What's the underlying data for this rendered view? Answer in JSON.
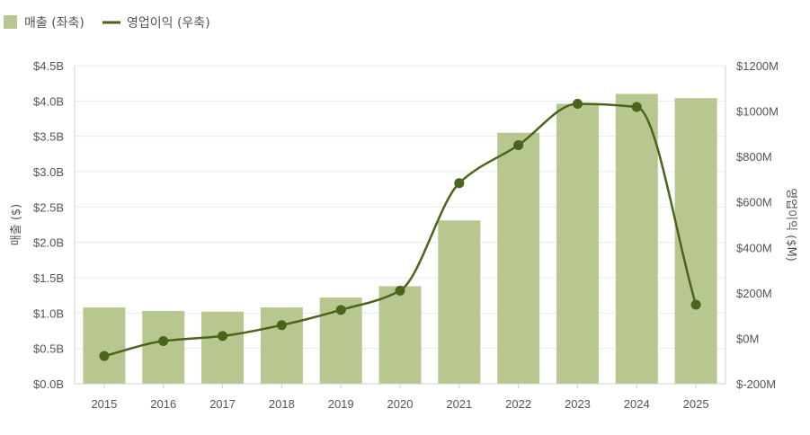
{
  "chart_data": {
    "type": "bar",
    "legend": {
      "position": "top-left"
    },
    "colors": {
      "bar": "#b8c78f",
      "line": "#4b641c",
      "grid": "#ececec",
      "axis": "#d0d0d0",
      "text": "#555555"
    },
    "categories": [
      "2015",
      "2016",
      "2017",
      "2018",
      "2019",
      "2020",
      "2021",
      "2022",
      "2023",
      "2024",
      "2025"
    ],
    "series": [
      {
        "name": "매출 (좌축)",
        "type": "bar",
        "axis": "left",
        "values": [
          1.08,
          1.03,
          1.02,
          1.08,
          1.22,
          1.38,
          2.31,
          3.55,
          3.96,
          4.1,
          4.04
        ]
      },
      {
        "name": "영업이익 (우축)",
        "type": "line",
        "axis": "right",
        "smooth": true,
        "values": [
          -78,
          -12,
          10,
          58,
          125,
          210,
          683,
          850,
          1032,
          1018,
          148
        ]
      }
    ],
    "yleft": {
      "label": "매출 ($)",
      "range": [
        0,
        4.5
      ],
      "ticks": [
        0,
        0.5,
        1.0,
        1.5,
        2.0,
        2.5,
        3.0,
        3.5,
        4.0,
        4.5
      ],
      "tick_labels": [
        "$0.0B",
        "$0.5B",
        "$1.0B",
        "$1.5B",
        "$2.0B",
        "$2.5B",
        "$3.0B",
        "$3.5B",
        "$4.0B",
        "$4.5B"
      ]
    },
    "yright": {
      "label": "영업이익 ($M)",
      "range": [
        -200,
        1200
      ],
      "ticks": [
        -200,
        0,
        200,
        400,
        600,
        800,
        1000,
        1200
      ],
      "tick_labels": [
        "$-200M",
        "$0M",
        "$200M",
        "$400M",
        "$600M",
        "$800M",
        "$1000M",
        "$1200M"
      ]
    },
    "grid": true
  }
}
